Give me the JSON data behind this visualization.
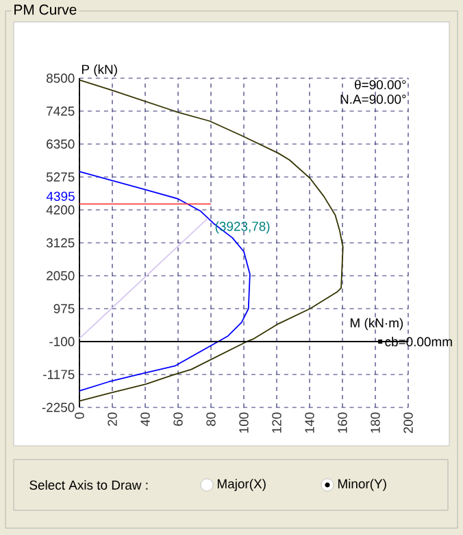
{
  "chart_data": {
    "type": "line",
    "title": "PM Curve",
    "xlabel": "M (kN·m)",
    "ylabel": "P (kN)",
    "xlim": [
      0,
      200
    ],
    "ylim": [
      -2250,
      8500
    ],
    "xticks": [
      0,
      20,
      40,
      60,
      80,
      100,
      120,
      140,
      160,
      180,
      200
    ],
    "yticks": [
      -2250,
      -1175,
      -100,
      975,
      2050,
      3125,
      4200,
      5275,
      6350,
      7425,
      8500
    ],
    "grid": true,
    "marker": "none",
    "line_style": "solid",
    "series": [
      {
        "color": "#333300",
        "x": [
          0,
          19.5,
          59.8,
          79.2,
          98.9,
          121,
          127.8,
          140.3,
          148.7,
          155.6,
          158.3,
          160.3,
          159.2,
          157,
          140.3,
          121,
          105.6,
          101.4,
          68,
          57,
          40.3,
          18,
          0
        ],
        "values": [
          8440,
          8110,
          7390,
          7100,
          6620,
          6050,
          5830,
          5230,
          4640,
          4030,
          3520,
          2990,
          1650,
          1530,
          975,
          480,
          -20,
          -110,
          -1010,
          -1190,
          -1490,
          -1790,
          -2040
        ]
      },
      {
        "color": "#0000ff",
        "x": [
          0,
          40.3,
          60,
          73.7,
          82,
          93,
          100,
          103.7,
          102.8,
          98.7,
          90.3,
          76.4,
          58.3,
          34.7,
          18,
          0
        ],
        "values": [
          5450,
          4860,
          4560,
          4160,
          3740,
          3290,
          2840,
          2100,
          975,
          530,
          80,
          -340,
          -890,
          -1190,
          -1410,
          -1710
        ]
      },
      {
        "color": "#d8c8f0",
        "x": [
          0,
          78
        ],
        "values": [
          0,
          3923
        ]
      },
      {
        "color": "#ff4040",
        "x": [
          0,
          80
        ],
        "values": [
          4395,
          4395
        ]
      }
    ],
    "ref_lines": [
      {
        "axis": "y",
        "value": -100,
        "color": "#000000"
      }
    ],
    "annotations": [
      "θ=90.00°",
      "N.A=90.00°",
      "Select Axis to Draw :",
      "Major(X)",
      "Minor(Y)",
      {
        "text": "4395",
        "x": 0,
        "y": 4395
      },
      {
        "text": "(3923,78)",
        "x": 78,
        "y": 3923
      },
      {
        "text": "cb=0.00mm",
        "x": 183,
        "y": -100
      }
    ]
  }
}
